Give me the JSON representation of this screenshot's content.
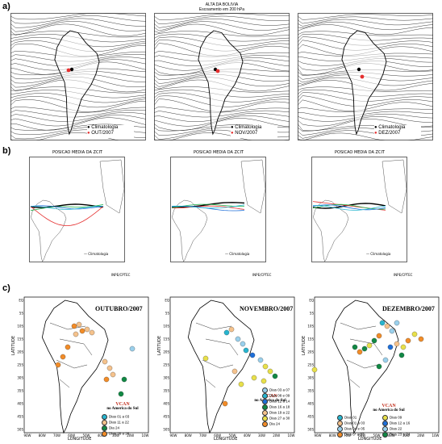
{
  "figure": {
    "section_labels": [
      "a)",
      "b)",
      "c)"
    ],
    "colors": {
      "red": "#e53030",
      "black": "#000000",
      "green": "#22b14c",
      "blue": "#1e6fd9",
      "cyan": "#27b5cf",
      "orange": "#f28c28",
      "yellow": "#e8e04a",
      "lightblue": "#9ad0ec",
      "peach": "#f5c28c",
      "darkgreen": "#118844"
    }
  },
  "row_a": {
    "title_line1": "ALTA DA BOLIVIA",
    "title_line2": "Escoamento em 200 hPa",
    "panels": [
      {
        "legend_clim": "Climatologia",
        "legend_month": "OUT/2007"
      },
      {
        "legend_clim": "Climatologia",
        "legend_month": "NOV/2007"
      },
      {
        "legend_clim": "Climatologia",
        "legend_month": "DEZ/2007"
      }
    ]
  },
  "row_b": {
    "panels": [
      {
        "title": "POSICAO MEDIA DA ZCIT",
        "legend": "Climatologia",
        "inpe": "INPE/CPTEC"
      },
      {
        "title": "POSICAO MEDIA DA ZCIT",
        "legend": "Climatologia",
        "inpe": "INPE/CPTEC"
      },
      {
        "title": "POSICAO MEDIA DA ZCIT",
        "legend": "Climatologia",
        "inpe": "INPE/CPTEC"
      }
    ]
  },
  "row_c": {
    "axis": {
      "latitude": "LATITUDE",
      "longitude": "LONGITUDE"
    },
    "lat_ticks": [
      "EQ",
      "5S",
      "10S",
      "15S",
      "20S",
      "25S",
      "30S",
      "35S",
      "40S",
      "45S",
      "50S"
    ],
    "lon_ticks": [
      "90W",
      "80W",
      "70W",
      "60W",
      "50W",
      "40W",
      "30W",
      "20W",
      "10W"
    ],
    "panels": [
      {
        "month": "OUTUBRO/2007",
        "vcan": "VCAN",
        "sub": "no America do Sul",
        "legend": [
          {
            "label": "Dias  01 a 03",
            "color": "cyan"
          },
          {
            "label": "Dias  11 a 22",
            "color": "peach"
          },
          {
            "label": "Dia  24",
            "color": "darkgreen"
          },
          {
            "label": "Dias  26 a 28",
            "color": "orange"
          }
        ]
      },
      {
        "month": "NOVEMBRO/2007",
        "vcan": "VCAN",
        "sub": "no America do Sul",
        "legend": [
          {
            "label": "Dias  03 a 07",
            "color": "lightblue"
          },
          {
            "label": "Dias  08 e 09",
            "color": "cyan"
          },
          {
            "label": "Dias  12 a 14",
            "color": "blue"
          },
          {
            "label": "Dias  16 a 18",
            "color": "darkgreen"
          },
          {
            "label": "Dias  19 a 22",
            "color": "peach"
          },
          {
            "label": "Dias  27 a 30",
            "color": "yellow"
          },
          {
            "label": "Dia  24",
            "color": "orange"
          }
        ]
      },
      {
        "month": "DEZEMBRO/2007",
        "vcan": "VCAN",
        "sub": "no America do Sul",
        "legend_left": [
          {
            "label": "Dias  01",
            "color": "cyan"
          },
          {
            "label": "Dias  01 a 03",
            "color": "peach"
          },
          {
            "label": "Dias  04 e 05",
            "color": "lightblue"
          },
          {
            "label": "Dias  6* a 07",
            "color": "orange"
          }
        ],
        "legend_right": [
          {
            "label": "Dias  09",
            "color": "yellow"
          },
          {
            "label": "Dias  12 a 16",
            "color": "blue"
          },
          {
            "label": "Dias  22",
            "color": "lightblue"
          },
          {
            "label": "Dias  23 a 24",
            "color": "darkgreen"
          }
        ]
      }
    ]
  }
}
